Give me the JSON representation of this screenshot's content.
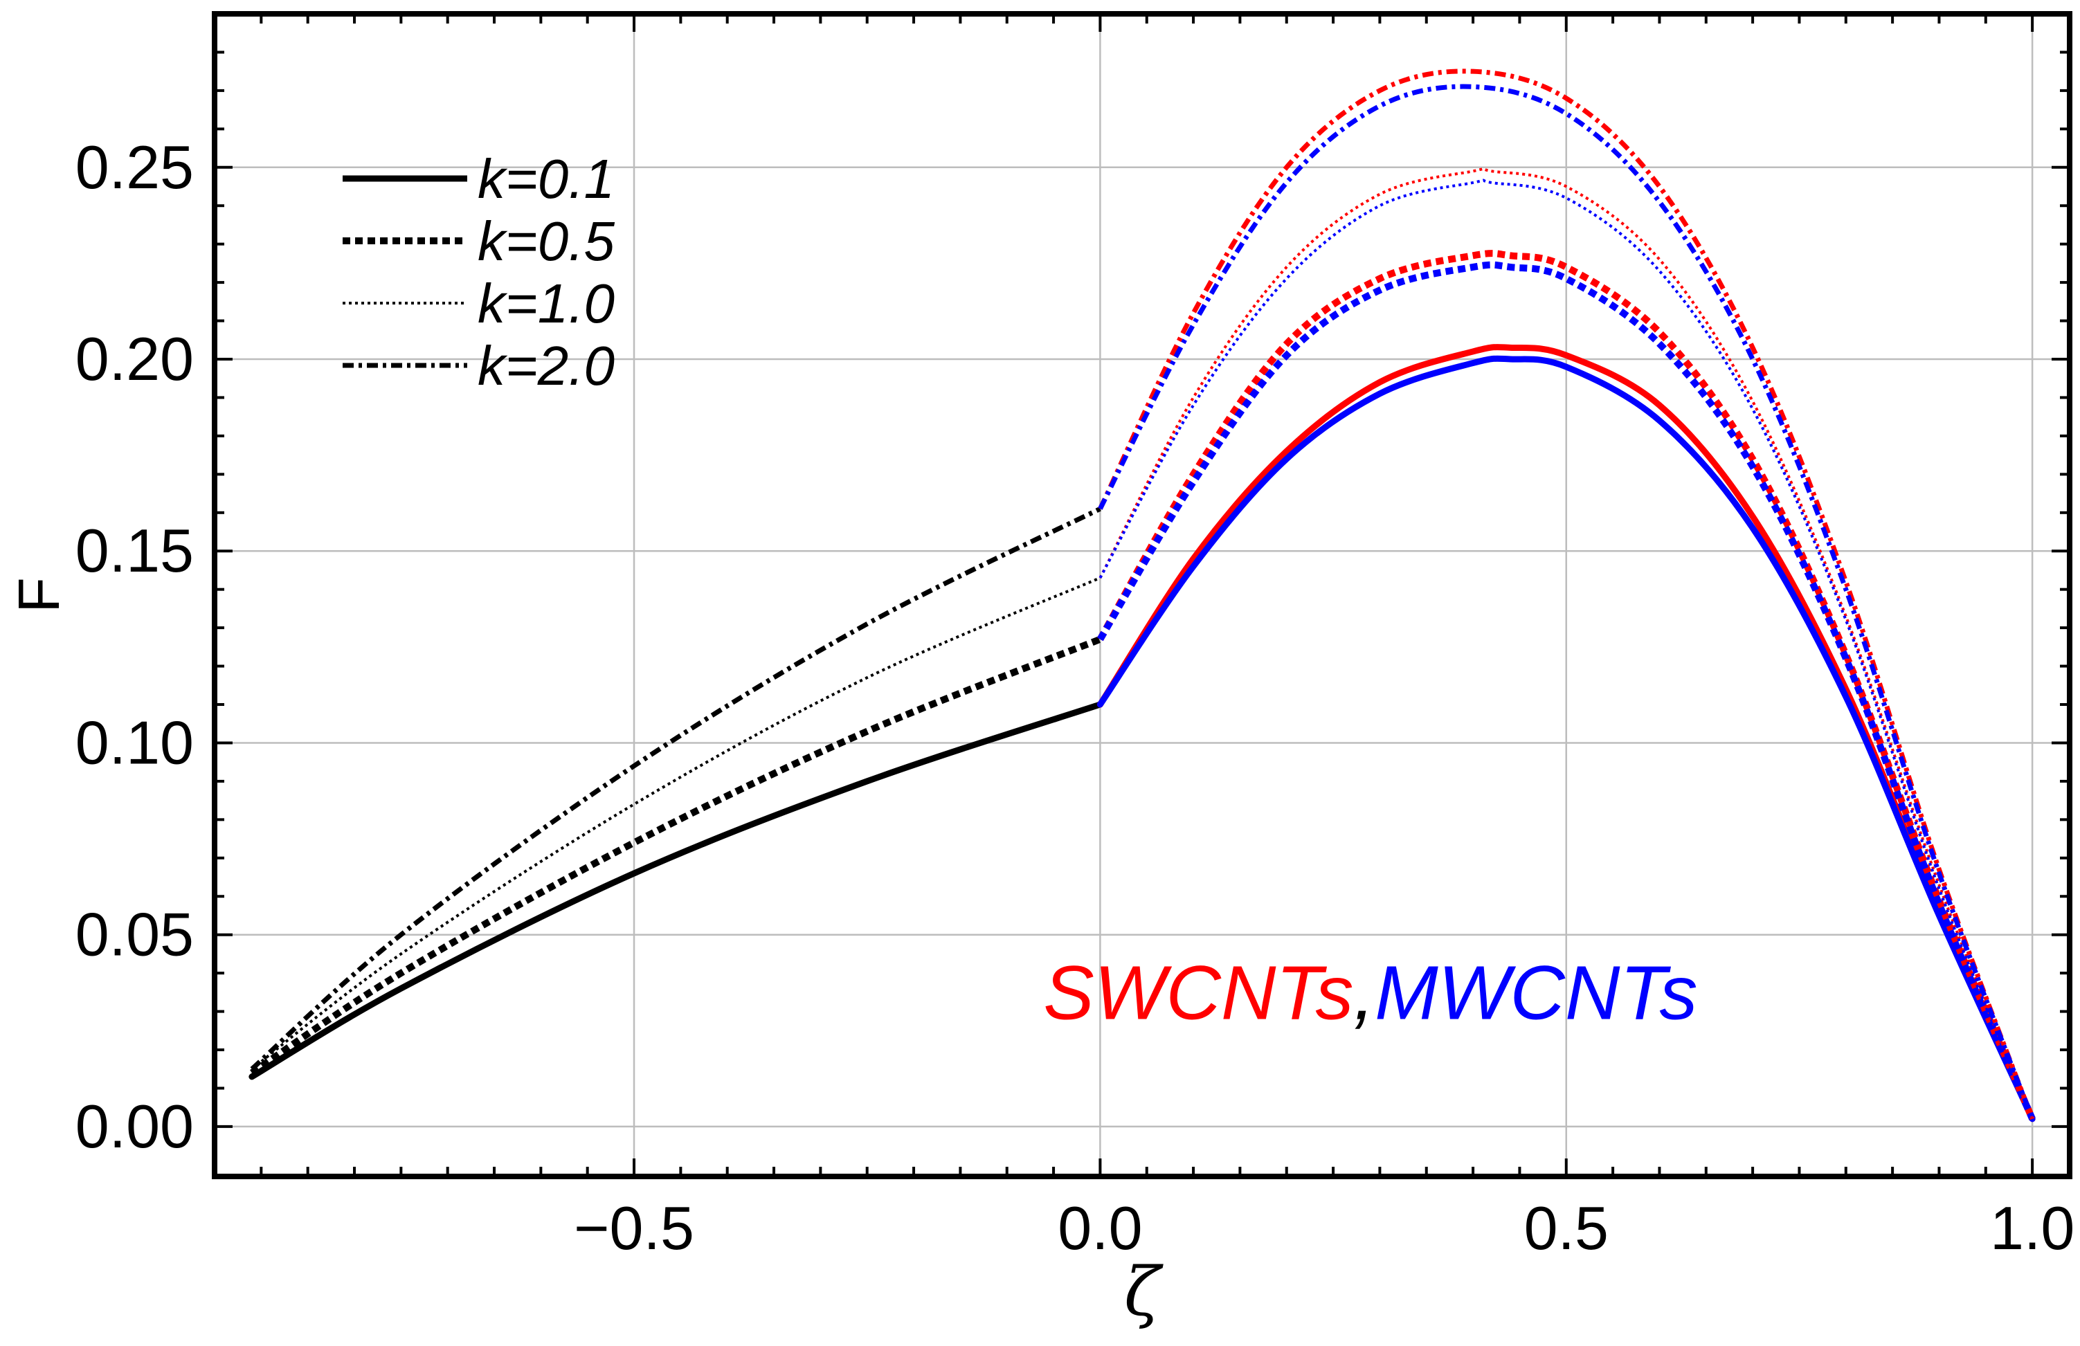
{
  "chart_data": {
    "type": "line",
    "xlabel": "ζ",
    "ylabel": "F",
    "xlim": [
      -0.95,
      1.04
    ],
    "ylim": [
      -0.013,
      0.29
    ],
    "grid": true,
    "x_ticks": [
      -0.5,
      0.0,
      0.5,
      1.0
    ],
    "x_tick_labels": [
      "−0.5",
      "0.0",
      "0.5",
      "1.0"
    ],
    "y_ticks": [
      0.0,
      0.05,
      0.1,
      0.15,
      0.2,
      0.25
    ],
    "y_tick_labels": [
      "0.00",
      "0.05",
      "0.10",
      "0.15",
      "0.20",
      "0.25"
    ],
    "legend": {
      "position": "top-left",
      "entries": [
        {
          "label": "k=0.1",
          "dash": "solid"
        },
        {
          "label": "k=0.5",
          "dash": "dashed"
        },
        {
          "label": "k=1.0",
          "dash": "dotted"
        },
        {
          "label": "k=2.0",
          "dash": "dashdot"
        }
      ]
    },
    "annotation": {
      "parts": [
        {
          "text": "SWCNTs",
          "color": "#ff0000"
        },
        {
          "text": ",",
          "color": "#000000"
        },
        {
          "text": "MWCNTs",
          "color": "#0000ff"
        }
      ],
      "at": [
        0.29,
        0.028
      ]
    },
    "series": [
      {
        "name": "k=0.1 (left region)",
        "color": "#000000",
        "dash": "solid",
        "x": [
          -0.91,
          -0.75,
          -0.5,
          -0.25,
          0.0
        ],
        "y": [
          0.013,
          0.036,
          0.066,
          0.09,
          0.11
        ]
      },
      {
        "name": "k=0.5 (left region)",
        "color": "#000000",
        "dash": "dashed",
        "x": [
          -0.91,
          -0.75,
          -0.5,
          -0.25,
          0.0
        ],
        "y": [
          0.014,
          0.04,
          0.074,
          0.103,
          0.127
        ]
      },
      {
        "name": "k=1.0 (left region)",
        "color": "#000000",
        "dash": "dotted",
        "x": [
          -0.91,
          -0.75,
          -0.5,
          -0.25,
          0.0
        ],
        "y": [
          0.015,
          0.045,
          0.084,
          0.117,
          0.143
        ]
      },
      {
        "name": "k=2.0 (left region)",
        "color": "#000000",
        "dash": "dashdot",
        "x": [
          -0.91,
          -0.75,
          -0.5,
          -0.25,
          0.0
        ],
        "y": [
          0.015,
          0.05,
          0.094,
          0.131,
          0.161
        ]
      },
      {
        "name": "SWCNTs k=0.1",
        "color": "#ff0000",
        "dash": "solid",
        "x": [
          0.0,
          0.1,
          0.2,
          0.3,
          0.4,
          0.44,
          0.5,
          0.6,
          0.7,
          0.8,
          0.9,
          1.0
        ],
        "y": [
          0.11,
          0.148,
          0.176,
          0.194,
          0.202,
          0.203,
          0.201,
          0.188,
          0.159,
          0.114,
          0.056,
          0.002
        ]
      },
      {
        "name": "MWCNTs k=0.1",
        "color": "#0000ff",
        "dash": "solid",
        "x": [
          0.0,
          0.1,
          0.2,
          0.3,
          0.4,
          0.44,
          0.5,
          0.6,
          0.7,
          0.8,
          0.9,
          1.0
        ],
        "y": [
          0.11,
          0.146,
          0.174,
          0.191,
          0.199,
          0.2,
          0.198,
          0.184,
          0.156,
          0.112,
          0.055,
          0.002
        ]
      },
      {
        "name": "SWCNTs k=0.5",
        "color": "#ff0000",
        "dash": "dashed",
        "x": [
          0.0,
          0.1,
          0.2,
          0.3,
          0.4,
          0.44,
          0.5,
          0.6,
          0.7,
          0.8,
          0.9,
          1.0
        ],
        "y": [
          0.127,
          0.17,
          0.204,
          0.221,
          0.227,
          0.227,
          0.224,
          0.207,
          0.174,
          0.123,
          0.059,
          0.002
        ]
      },
      {
        "name": "MWCNTs k=0.5",
        "color": "#0000ff",
        "dash": "dashed",
        "x": [
          0.0,
          0.1,
          0.2,
          0.3,
          0.4,
          0.44,
          0.5,
          0.6,
          0.7,
          0.8,
          0.9,
          1.0
        ],
        "y": [
          0.127,
          0.168,
          0.201,
          0.218,
          0.224,
          0.224,
          0.221,
          0.204,
          0.172,
          0.122,
          0.058,
          0.002
        ]
      },
      {
        "name": "SWCNTs k=1.0",
        "color": "#ff0000",
        "dash": "dotted",
        "x": [
          0.0,
          0.1,
          0.2,
          0.3,
          0.4,
          0.42,
          0.5,
          0.6,
          0.7,
          0.8,
          0.9,
          1.0
        ],
        "y": [
          0.143,
          0.19,
          0.224,
          0.243,
          0.249,
          0.249,
          0.245,
          0.226,
          0.189,
          0.133,
          0.063,
          0.002
        ]
      },
      {
        "name": "MWCNTs k=1.0",
        "color": "#0000ff",
        "dash": "dotted",
        "x": [
          0.0,
          0.1,
          0.2,
          0.3,
          0.4,
          0.42,
          0.5,
          0.6,
          0.7,
          0.8,
          0.9,
          1.0
        ],
        "y": [
          0.143,
          0.188,
          0.221,
          0.24,
          0.246,
          0.246,
          0.242,
          0.223,
          0.187,
          0.132,
          0.062,
          0.002
        ]
      },
      {
        "name": "SWCNTs k=2.0",
        "color": "#ff0000",
        "dash": "dashdot",
        "x": [
          0.0,
          0.1,
          0.2,
          0.3,
          0.4,
          0.5,
          0.6,
          0.7,
          0.8,
          0.9,
          1.0
        ],
        "y": [
          0.161,
          0.212,
          0.25,
          0.27,
          0.275,
          0.268,
          0.245,
          0.203,
          0.142,
          0.067,
          0.002
        ]
      },
      {
        "name": "MWCNTs k=2.0",
        "color": "#0000ff",
        "dash": "dashdot",
        "x": [
          0.0,
          0.1,
          0.2,
          0.3,
          0.4,
          0.5,
          0.6,
          0.7,
          0.8,
          0.9,
          1.0
        ],
        "y": [
          0.161,
          0.209,
          0.246,
          0.266,
          0.271,
          0.264,
          0.241,
          0.2,
          0.14,
          0.066,
          0.002
        ]
      }
    ]
  }
}
